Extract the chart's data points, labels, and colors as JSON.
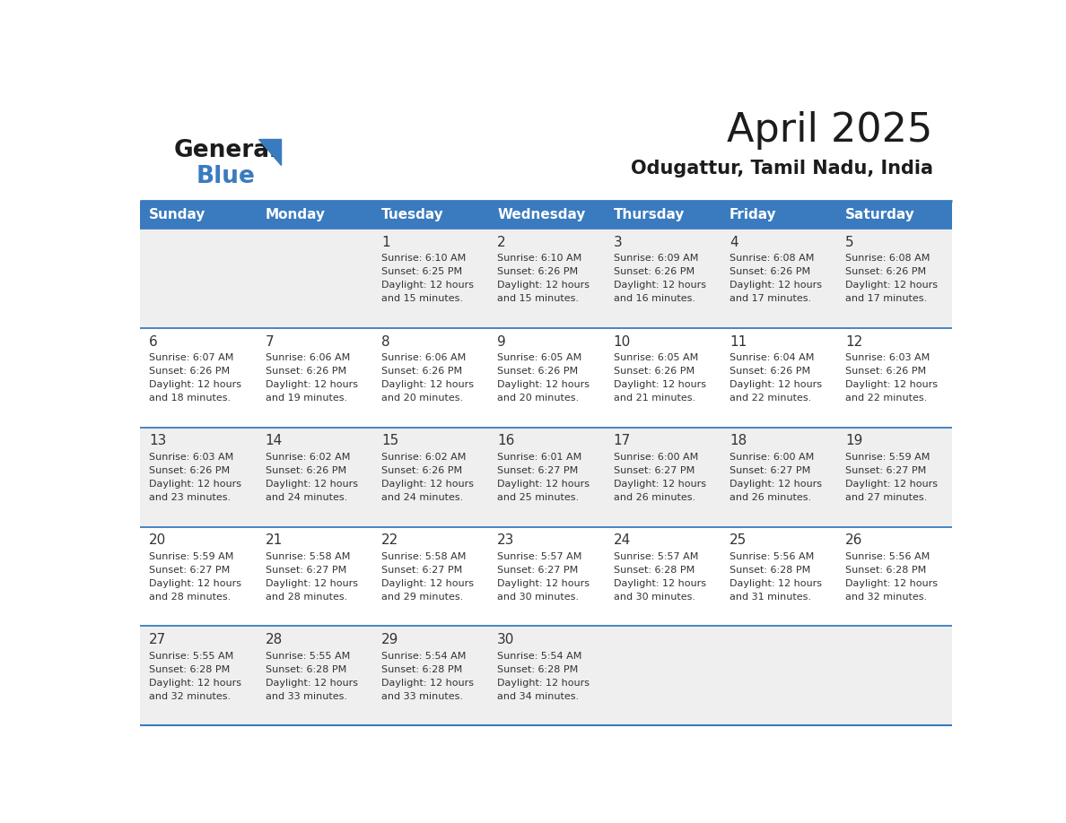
{
  "title": "April 2025",
  "subtitle": "Odugattur, Tamil Nadu, India",
  "header_color": "#3a7bbf",
  "header_text_color": "#ffffff",
  "background_color": "#ffffff",
  "alt_row_color": "#efefef",
  "border_color": "#3a7bbf",
  "text_color": "#333333",
  "days_of_week": [
    "Sunday",
    "Monday",
    "Tuesday",
    "Wednesday",
    "Thursday",
    "Friday",
    "Saturday"
  ],
  "calendar_data": [
    [
      {
        "day": "",
        "sunrise": "",
        "sunset": "",
        "daylight": ""
      },
      {
        "day": "",
        "sunrise": "",
        "sunset": "",
        "daylight": ""
      },
      {
        "day": "1",
        "sunrise": "Sunrise: 6:10 AM",
        "sunset": "Sunset: 6:25 PM",
        "daylight": "Daylight: 12 hours\nand 15 minutes."
      },
      {
        "day": "2",
        "sunrise": "Sunrise: 6:10 AM",
        "sunset": "Sunset: 6:26 PM",
        "daylight": "Daylight: 12 hours\nand 15 minutes."
      },
      {
        "day": "3",
        "sunrise": "Sunrise: 6:09 AM",
        "sunset": "Sunset: 6:26 PM",
        "daylight": "Daylight: 12 hours\nand 16 minutes."
      },
      {
        "day": "4",
        "sunrise": "Sunrise: 6:08 AM",
        "sunset": "Sunset: 6:26 PM",
        "daylight": "Daylight: 12 hours\nand 17 minutes."
      },
      {
        "day": "5",
        "sunrise": "Sunrise: 6:08 AM",
        "sunset": "Sunset: 6:26 PM",
        "daylight": "Daylight: 12 hours\nand 17 minutes."
      }
    ],
    [
      {
        "day": "6",
        "sunrise": "Sunrise: 6:07 AM",
        "sunset": "Sunset: 6:26 PM",
        "daylight": "Daylight: 12 hours\nand 18 minutes."
      },
      {
        "day": "7",
        "sunrise": "Sunrise: 6:06 AM",
        "sunset": "Sunset: 6:26 PM",
        "daylight": "Daylight: 12 hours\nand 19 minutes."
      },
      {
        "day": "8",
        "sunrise": "Sunrise: 6:06 AM",
        "sunset": "Sunset: 6:26 PM",
        "daylight": "Daylight: 12 hours\nand 20 minutes."
      },
      {
        "day": "9",
        "sunrise": "Sunrise: 6:05 AM",
        "sunset": "Sunset: 6:26 PM",
        "daylight": "Daylight: 12 hours\nand 20 minutes."
      },
      {
        "day": "10",
        "sunrise": "Sunrise: 6:05 AM",
        "sunset": "Sunset: 6:26 PM",
        "daylight": "Daylight: 12 hours\nand 21 minutes."
      },
      {
        "day": "11",
        "sunrise": "Sunrise: 6:04 AM",
        "sunset": "Sunset: 6:26 PM",
        "daylight": "Daylight: 12 hours\nand 22 minutes."
      },
      {
        "day": "12",
        "sunrise": "Sunrise: 6:03 AM",
        "sunset": "Sunset: 6:26 PM",
        "daylight": "Daylight: 12 hours\nand 22 minutes."
      }
    ],
    [
      {
        "day": "13",
        "sunrise": "Sunrise: 6:03 AM",
        "sunset": "Sunset: 6:26 PM",
        "daylight": "Daylight: 12 hours\nand 23 minutes."
      },
      {
        "day": "14",
        "sunrise": "Sunrise: 6:02 AM",
        "sunset": "Sunset: 6:26 PM",
        "daylight": "Daylight: 12 hours\nand 24 minutes."
      },
      {
        "day": "15",
        "sunrise": "Sunrise: 6:02 AM",
        "sunset": "Sunset: 6:26 PM",
        "daylight": "Daylight: 12 hours\nand 24 minutes."
      },
      {
        "day": "16",
        "sunrise": "Sunrise: 6:01 AM",
        "sunset": "Sunset: 6:27 PM",
        "daylight": "Daylight: 12 hours\nand 25 minutes."
      },
      {
        "day": "17",
        "sunrise": "Sunrise: 6:00 AM",
        "sunset": "Sunset: 6:27 PM",
        "daylight": "Daylight: 12 hours\nand 26 minutes."
      },
      {
        "day": "18",
        "sunrise": "Sunrise: 6:00 AM",
        "sunset": "Sunset: 6:27 PM",
        "daylight": "Daylight: 12 hours\nand 26 minutes."
      },
      {
        "day": "19",
        "sunrise": "Sunrise: 5:59 AM",
        "sunset": "Sunset: 6:27 PM",
        "daylight": "Daylight: 12 hours\nand 27 minutes."
      }
    ],
    [
      {
        "day": "20",
        "sunrise": "Sunrise: 5:59 AM",
        "sunset": "Sunset: 6:27 PM",
        "daylight": "Daylight: 12 hours\nand 28 minutes."
      },
      {
        "day": "21",
        "sunrise": "Sunrise: 5:58 AM",
        "sunset": "Sunset: 6:27 PM",
        "daylight": "Daylight: 12 hours\nand 28 minutes."
      },
      {
        "day": "22",
        "sunrise": "Sunrise: 5:58 AM",
        "sunset": "Sunset: 6:27 PM",
        "daylight": "Daylight: 12 hours\nand 29 minutes."
      },
      {
        "day": "23",
        "sunrise": "Sunrise: 5:57 AM",
        "sunset": "Sunset: 6:27 PM",
        "daylight": "Daylight: 12 hours\nand 30 minutes."
      },
      {
        "day": "24",
        "sunrise": "Sunrise: 5:57 AM",
        "sunset": "Sunset: 6:28 PM",
        "daylight": "Daylight: 12 hours\nand 30 minutes."
      },
      {
        "day": "25",
        "sunrise": "Sunrise: 5:56 AM",
        "sunset": "Sunset: 6:28 PM",
        "daylight": "Daylight: 12 hours\nand 31 minutes."
      },
      {
        "day": "26",
        "sunrise": "Sunrise: 5:56 AM",
        "sunset": "Sunset: 6:28 PM",
        "daylight": "Daylight: 12 hours\nand 32 minutes."
      }
    ],
    [
      {
        "day": "27",
        "sunrise": "Sunrise: 5:55 AM",
        "sunset": "Sunset: 6:28 PM",
        "daylight": "Daylight: 12 hours\nand 32 minutes."
      },
      {
        "day": "28",
        "sunrise": "Sunrise: 5:55 AM",
        "sunset": "Sunset: 6:28 PM",
        "daylight": "Daylight: 12 hours\nand 33 minutes."
      },
      {
        "day": "29",
        "sunrise": "Sunrise: 5:54 AM",
        "sunset": "Sunset: 6:28 PM",
        "daylight": "Daylight: 12 hours\nand 33 minutes."
      },
      {
        "day": "30",
        "sunrise": "Sunrise: 5:54 AM",
        "sunset": "Sunset: 6:28 PM",
        "daylight": "Daylight: 12 hours\nand 34 minutes."
      },
      {
        "day": "",
        "sunrise": "",
        "sunset": "",
        "daylight": ""
      },
      {
        "day": "",
        "sunrise": "",
        "sunset": "",
        "daylight": ""
      },
      {
        "day": "",
        "sunrise": "",
        "sunset": "",
        "daylight": ""
      }
    ]
  ]
}
